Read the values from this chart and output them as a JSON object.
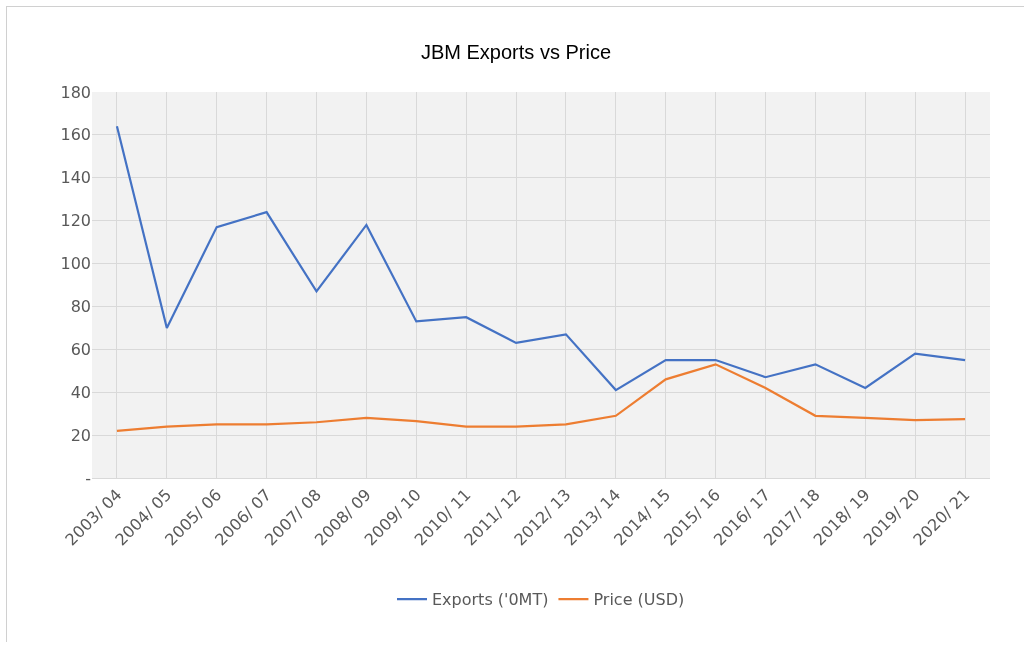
{
  "chart_data": {
    "type": "line",
    "title": "JBM Exports vs Price",
    "categories": [
      "2003/ 04",
      "2004/ 05",
      "2005/ 06",
      "2006/ 07",
      "2007/ 08",
      "2008/ 09",
      "2009/ 10",
      "2010/ 11",
      "2011/ 12",
      "2012/ 13",
      "2013/ 14",
      "2014/ 15",
      "2015/ 16",
      "2016/ 17",
      "2017/ 18",
      "2018/ 19",
      "2019/ 20",
      "2020/ 21"
    ],
    "series": [
      {
        "name": "Exports ('0MT)",
        "color": "#4472c4",
        "values": [
          164,
          70,
          117,
          124,
          87,
          118,
          73,
          75,
          63,
          67,
          41,
          55,
          55,
          47,
          53,
          42,
          58,
          55
        ]
      },
      {
        "name": "Price (USD)",
        "color": "#ed7d31",
        "values": [
          22,
          24,
          25,
          25,
          26,
          28,
          26.5,
          24,
          24,
          25,
          29,
          46,
          53,
          42,
          29,
          28,
          27,
          27.5
        ]
      }
    ],
    "ylim": [
      0,
      180
    ],
    "yticks": [
      {
        "value": 0,
        "label": "-"
      },
      20,
      40,
      60,
      80,
      100,
      120,
      140,
      160,
      180
    ],
    "grid": true,
    "legend": "bottom",
    "marker": "none",
    "line_style": "solid"
  }
}
